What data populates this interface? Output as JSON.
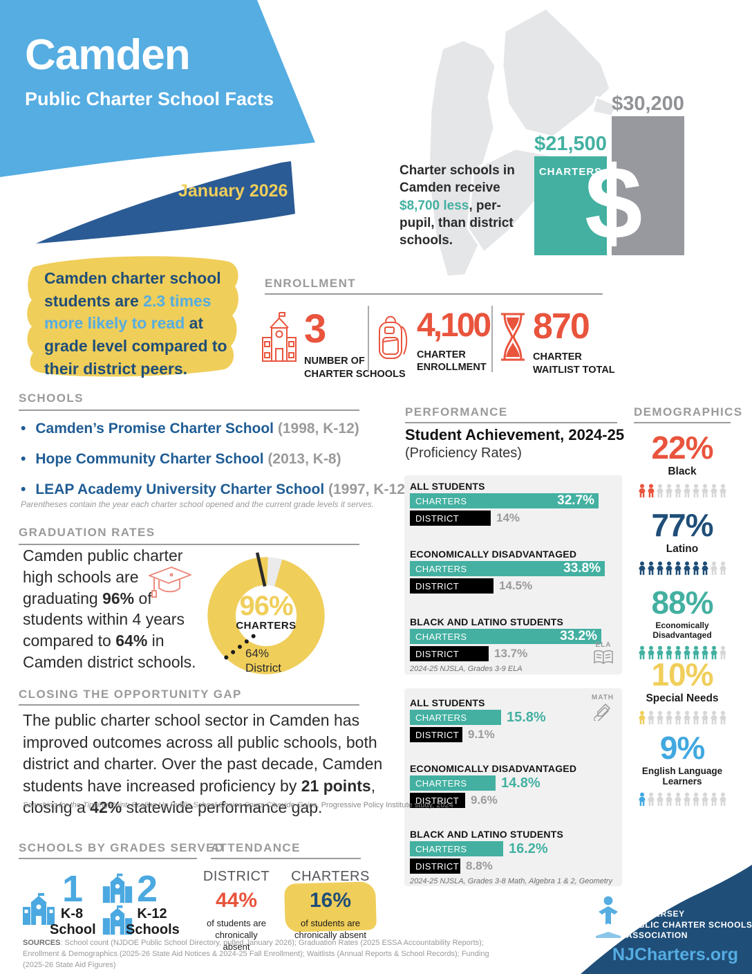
{
  "header": {
    "title": "Camden",
    "subtitle": "Public Charter School Facts",
    "date": "January 2026"
  },
  "funding": {
    "text_part1": "Charter schools in Camden receive ",
    "text_highlight": "$8,700 less",
    "text_part2": ", per-pupil, than district schools.",
    "charters_label": "CHARTERS",
    "charters_value": "$21,500",
    "district_value": "$30,200",
    "charters_num": 21500,
    "district_num": 30200,
    "dollar_sign": "$"
  },
  "callout": {
    "part1": "Camden charter school students are ",
    "highlight": "2.3 times more likely to read",
    "part2": " at grade level compared to their district peers."
  },
  "enrollment": {
    "heading": "ENROLLMENT",
    "stats": [
      {
        "value": "3",
        "line1": "NUMBER OF",
        "line2": "CHARTER SCHOOLS",
        "icon": "school-building-icon"
      },
      {
        "value": "4,100",
        "line1": "CHARTER",
        "line2": "ENROLLMENT",
        "icon": "backpack-icon"
      },
      {
        "value": "870",
        "line1": "CHARTER",
        "line2": "WAITLIST TOTAL",
        "icon": "hourglass-icon"
      }
    ]
  },
  "schools": {
    "heading": "SCHOOLS",
    "bullet": "•",
    "items": [
      {
        "name": "Camden’s Promise Charter School",
        "detail": " (1998, K-12)"
      },
      {
        "name": "Hope Community Charter School",
        "detail": " (2013, K-8)"
      },
      {
        "name": "LEAP Academy University Charter School",
        "detail": " (1997, K-12)"
      }
    ],
    "note": "Parentheses contain the year each charter school opened and the current grade levels it serves."
  },
  "graduation": {
    "heading": "GRADUATION RATES",
    "part1": "Camden public charter high schools are graduating ",
    "bold1": "96%",
    "part2": " of students within 4 years compared to ",
    "bold2": "64%",
    "part3": " in Camden district schools.",
    "donut_value": "96%",
    "donut_label": "CHARTERS",
    "district_value": "64%",
    "district_label": "District",
    "charters_pct": 96,
    "district_pct": 64
  },
  "performance": {
    "heading": "PERFORMANCE",
    "title": "Student Achievement, 2024-25",
    "subtitle": "(Proficiency Rates)",
    "charters_label": "CHARTERS",
    "district_label": "DISTRICT",
    "panels": [
      {
        "subject": "ELA",
        "footnote": "2024-25 NJSLA, Grades 3-9 ELA",
        "groups": [
          {
            "label": "ALL STUDENTS",
            "charters": 32.7,
            "district": 14,
            "charters_display": "32.7%",
            "district_display": "14%"
          },
          {
            "label": "ECONOMICALLY DISADVANTAGED",
            "charters": 33.8,
            "district": 14.5,
            "charters_display": "33.8%",
            "district_display": "14.5%"
          },
          {
            "label": "BLACK AND LATINO STUDENTS",
            "charters": 33.2,
            "district": 13.7,
            "charters_display": "33.2%",
            "district_display": "13.7%"
          }
        ]
      },
      {
        "subject": "MATH",
        "footnote": "2024-25 NJSLA, Grades 3-8 Math, Algebra 1 & 2, Geometry",
        "groups": [
          {
            "label": "ALL STUDENTS",
            "charters": 15.8,
            "district": 9.1,
            "charters_display": "15.8%",
            "district_display": "9.1%"
          },
          {
            "label": "ECONOMICALLY DISADVANTAGED",
            "charters": 14.8,
            "district": 9.6,
            "charters_display": "14.8%",
            "district_display": "9.6%"
          },
          {
            "label": "BLACK AND LATINO STUDENTS",
            "charters": 16.2,
            "district": 8.8,
            "charters_display": "16.2%",
            "district_display": "8.8%"
          }
        ]
      }
    ]
  },
  "demographics": {
    "heading": "DEMOGRAPHICS",
    "items": [
      {
        "value": "22%",
        "label": "Black",
        "color": "#E9543D",
        "filled": 2,
        "total": 10
      },
      {
        "value": "77%",
        "label": "Latino",
        "color": "#1F4E78",
        "filled": 8,
        "total": 10
      },
      {
        "value": "88%",
        "label": "Economically Disadvantaged",
        "color": "#43B0A1",
        "filled": 9,
        "total": 10
      },
      {
        "value": "10%",
        "label": "Special Needs",
        "color": "#F0CE5A",
        "filled": 1,
        "total": 10
      },
      {
        "value": "9%",
        "label": "English Language Learners",
        "color": "#41A8E0",
        "filled": 1,
        "total": 10
      }
    ]
  },
  "opportunity": {
    "heading": "CLOSING THE OPPORTUNITY GAP",
    "part1": "The public charter school sector in Camden has improved outcomes across all public schools, both district and charter. Over the past decade, Camden students have increased proficiency by ",
    "bold1": "21 points",
    "part2": ", closing a ",
    "bold2": "42%",
    "part3": " statewide performance gap.",
    "footnote_italic": "Searching for the Tipping Point: Scaling Up Public School Choice Spurs Citywide Gains",
    "footnote_rest": ", Progressive Policy Institute study, 2024"
  },
  "grades_served": {
    "heading": "SCHOOLS BY GRADES SERVED",
    "items": [
      {
        "count": "1",
        "line1": "K-8",
        "line2": "School"
      },
      {
        "count": "2",
        "line1": "K-12",
        "line2": "Schools"
      }
    ]
  },
  "attendance": {
    "heading": "ATTENDANCE",
    "district_label": "DISTRICT",
    "district_value": "44%",
    "district_caption1": "of students are",
    "district_caption2": "chronically absent",
    "charters_label": "CHARTERS",
    "charters_value": "16%",
    "charters_caption1": "of students are",
    "charters_caption2": "chronically absent"
  },
  "sources": {
    "label": "SOURCES",
    "text": ": School count (NJDOE Public School Directory, pulled January 2026); Graduation Rates (2025 ESSA Accountability Reports); Enrollment & Demographics (2025-26 State Aid Notices & 2024-25 Fall Enrollment); Waitlists (Annual Reports & School Records); Funding (2025-26 State Aid Figures)"
  },
  "footer": {
    "org_line1": "NEW JERSEY",
    "org_line2": "PUBLIC CHARTER SCHOOLS",
    "org_line3": "ASSOCIATION",
    "website": "NJCharters.org"
  },
  "chart_data": [
    {
      "type": "bar",
      "title": "Per-pupil funding",
      "categories": [
        "CHARTERS",
        "DISTRICT"
      ],
      "values": [
        21500,
        30200
      ],
      "labels": [
        "$21,500",
        "$30,200"
      ]
    },
    {
      "type": "pie",
      "title": "Graduation rates (4-year)",
      "categories": [
        "Charters",
        "District"
      ],
      "values": [
        96,
        64
      ]
    },
    {
      "type": "bar",
      "title": "Student Achievement, 2024-25 (Proficiency Rates) — ELA",
      "categories": [
        "ALL STUDENTS",
        "ECONOMICALLY DISADVANTAGED",
        "BLACK AND LATINO STUDENTS"
      ],
      "series": [
        {
          "name": "CHARTERS",
          "values": [
            32.7,
            33.8,
            33.2
          ]
        },
        {
          "name": "DISTRICT",
          "values": [
            14,
            14.5,
            13.7
          ]
        }
      ]
    },
    {
      "type": "bar",
      "title": "Student Achievement, 2024-25 (Proficiency Rates) — MATH",
      "categories": [
        "ALL STUDENTS",
        "ECONOMICALLY DISADVANTAGED",
        "BLACK AND LATINO STUDENTS"
      ],
      "series": [
        {
          "name": "CHARTERS",
          "values": [
            15.8,
            14.8,
            16.2
          ]
        },
        {
          "name": "DISTRICT",
          "values": [
            9.1,
            9.6,
            8.8
          ]
        }
      ]
    },
    {
      "type": "bar",
      "title": "Demographics",
      "categories": [
        "Black",
        "Latino",
        "Economically Disadvantaged",
        "Special Needs",
        "English Language Learners"
      ],
      "values": [
        22,
        77,
        88,
        10,
        9
      ]
    },
    {
      "type": "bar",
      "title": "Chronic absenteeism",
      "categories": [
        "DISTRICT",
        "CHARTERS"
      ],
      "values": [
        44,
        16
      ]
    }
  ]
}
